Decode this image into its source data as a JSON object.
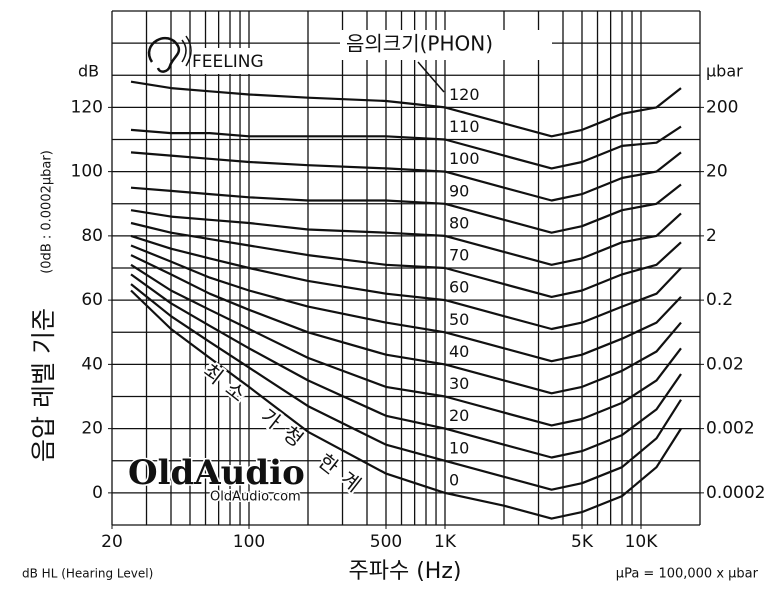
{
  "chart_data": {
    "type": "line",
    "phon_title": "음의크기(PHON)",
    "feeling": "FEELING",
    "threshold_label": "최소 가청 한계",
    "ylabel": "음압 레벨 기준",
    "ylabel_sub": "(0dB : 0.0002μbar)",
    "ylabel_unit": "dB",
    "y2label_unit": "μbar",
    "xlabel": "주파수 (Hz)",
    "footer_left": "dB HL (Hearing Level)",
    "footer_right": "μPa = 100,000 x μbar",
    "watermark": "OldAudio",
    "watermark_sub": "OldAudio.com",
    "xscale": "log",
    "y2scale": "log",
    "grid": true,
    "color": "#111111",
    "xlim": [
      20,
      20000
    ],
    "ylim": [
      -10,
      150
    ],
    "y2lim": [
      6.32e-05,
      6325
    ],
    "xticks": [
      20,
      100,
      500,
      {
        "value": 1000,
        "label": "1K"
      },
      {
        "value": 5000,
        "label": "5K"
      },
      {
        "value": 10000,
        "label": "10K"
      }
    ],
    "yticks": [
      0,
      20,
      40,
      60,
      80,
      100,
      120
    ],
    "y2ticks": [
      0.0002,
      0.002,
      0.02,
      0.2,
      2,
      20,
      200
    ],
    "xgrid": [
      20,
      30,
      40,
      50,
      60,
      70,
      80,
      90,
      100,
      200,
      300,
      400,
      500,
      600,
      700,
      800,
      900,
      1000,
      2000,
      3000,
      4000,
      5000,
      6000,
      7000,
      8000,
      9000,
      10000,
      20000
    ],
    "ygrid": [
      -10,
      0,
      10,
      20,
      30,
      40,
      50,
      60,
      70,
      80,
      90,
      100,
      110,
      120,
      130,
      140,
      150
    ],
    "x": [
      25,
      40,
      63,
      100,
      200,
      500,
      1000,
      2000,
      3500,
      5000,
      8000,
      12000,
      16000
    ],
    "series": [
      {
        "name": "120",
        "values": [
          128,
          126,
          125,
          124,
          123,
          122,
          120,
          115,
          111,
          113,
          118,
          120,
          126
        ]
      },
      {
        "name": "110",
        "values": [
          113,
          112,
          112,
          111,
          111,
          111,
          110,
          105,
          101,
          103,
          108,
          109,
          114
        ]
      },
      {
        "name": "100",
        "values": [
          106,
          105,
          104,
          103,
          102,
          101,
          100,
          95,
          91,
          93,
          98,
          100,
          106
        ]
      },
      {
        "name": "90",
        "values": [
          95,
          94,
          93,
          92,
          91,
          91,
          90,
          85,
          81,
          83,
          88,
          90,
          96
        ]
      },
      {
        "name": "80",
        "values": [
          88,
          86,
          85,
          84,
          82,
          81,
          80,
          75,
          71,
          73,
          78,
          80,
          87
        ]
      },
      {
        "name": "70",
        "values": [
          84,
          81,
          79,
          77,
          74,
          71,
          70,
          65,
          61,
          63,
          68,
          71,
          78
        ]
      },
      {
        "name": "60",
        "values": [
          80,
          76,
          73,
          70,
          66,
          62,
          60,
          55,
          51,
          53,
          58,
          62,
          70
        ]
      },
      {
        "name": "50",
        "values": [
          77,
          72,
          67,
          63,
          58,
          53,
          50,
          45,
          41,
          43,
          48,
          53,
          61
        ]
      },
      {
        "name": "40",
        "values": [
          74,
          68,
          62,
          57,
          50,
          43,
          40,
          35,
          31,
          33,
          38,
          44,
          53
        ]
      },
      {
        "name": "30",
        "values": [
          71,
          63,
          57,
          51,
          42,
          33,
          30,
          25,
          21,
          23,
          28,
          35,
          45
        ]
      },
      {
        "name": "20",
        "values": [
          68,
          59,
          52,
          45,
          35,
          24,
          20,
          15,
          11,
          13,
          18,
          26,
          37
        ]
      },
      {
        "name": "10",
        "values": [
          65,
          55,
          47,
          39,
          27,
          15,
          10,
          5,
          1,
          3,
          8,
          17,
          29
        ]
      },
      {
        "name": "0",
        "values": [
          63,
          51,
          42,
          33,
          19,
          6,
          0,
          -4,
          -8,
          -6,
          -1,
          8,
          20
        ]
      }
    ]
  }
}
